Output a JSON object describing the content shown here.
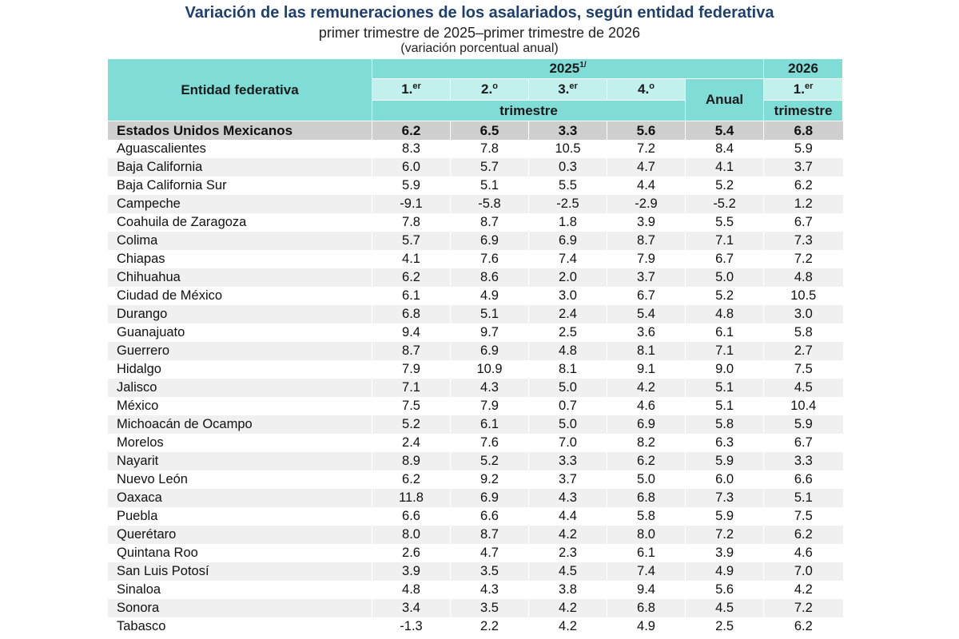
{
  "title": "Variación de las remuneraciones de los asalariados, según entidad federativa",
  "subtitle": "primer trimestre de 2025–primer trimestre de 2026",
  "subtitle2": "(variación porcentual anual)",
  "header": {
    "entity_label": "Entidad federativa",
    "year1": "2025",
    "year1_note": "1/",
    "year2": "2026",
    "q1": "1.",
    "q1_sup": "er",
    "q2": "2.",
    "q2_sup": "o",
    "q3": "3.",
    "q3_sup": "er",
    "q4": "4.",
    "q4_sup": "o",
    "anual": "Anual",
    "q2026": "1.",
    "q2026_sup": "er",
    "trimestre": "trimestre",
    "trimestre2": "trimestre"
  },
  "national": {
    "name": "Estados Unidos Mexicanos",
    "values": [
      "6.2",
      "6.5",
      "3.3",
      "5.6",
      "5.4",
      "6.8"
    ]
  },
  "rows": [
    {
      "name": "Aguascalientes",
      "values": [
        "8.3",
        "7.8",
        "10.5",
        "7.2",
        "8.4",
        "5.9"
      ]
    },
    {
      "name": "Baja California",
      "values": [
        "6.0",
        "5.7",
        "0.3",
        "4.7",
        "4.1",
        "3.7"
      ]
    },
    {
      "name": "Baja California Sur",
      "values": [
        "5.9",
        "5.1",
        "5.5",
        "4.4",
        "5.2",
        "6.2"
      ]
    },
    {
      "name": "Campeche",
      "values": [
        "-9.1",
        "-5.8",
        "-2.5",
        "-2.9",
        "-5.2",
        "1.2"
      ]
    },
    {
      "name": "Coahuila de Zaragoza",
      "values": [
        "7.8",
        "8.7",
        "1.8",
        "3.9",
        "5.5",
        "6.7"
      ]
    },
    {
      "name": "Colima",
      "values": [
        "5.7",
        "6.9",
        "6.9",
        "8.7",
        "7.1",
        "7.3"
      ]
    },
    {
      "name": "Chiapas",
      "values": [
        "4.1",
        "7.6",
        "7.4",
        "7.9",
        "6.7",
        "7.2"
      ]
    },
    {
      "name": "Chihuahua",
      "values": [
        "6.2",
        "8.6",
        "2.0",
        "3.7",
        "5.0",
        "4.8"
      ]
    },
    {
      "name": "Ciudad de México",
      "values": [
        "6.1",
        "4.9",
        "3.0",
        "6.7",
        "5.2",
        "10.5"
      ]
    },
    {
      "name": "Durango",
      "values": [
        "6.8",
        "5.1",
        "2.4",
        "5.4",
        "4.8",
        "3.0"
      ]
    },
    {
      "name": "Guanajuato",
      "values": [
        "9.4",
        "9.7",
        "2.5",
        "3.6",
        "6.1",
        "5.8"
      ]
    },
    {
      "name": "Guerrero",
      "values": [
        "8.7",
        "6.9",
        "4.8",
        "8.1",
        "7.1",
        "2.7"
      ]
    },
    {
      "name": "Hidalgo",
      "values": [
        "7.9",
        "10.9",
        "8.1",
        "9.1",
        "9.0",
        "7.5"
      ]
    },
    {
      "name": "Jalisco",
      "values": [
        "7.1",
        "4.3",
        "5.0",
        "4.2",
        "5.1",
        "4.5"
      ]
    },
    {
      "name": "México",
      "values": [
        "7.5",
        "7.9",
        "0.7",
        "4.6",
        "5.1",
        "10.4"
      ]
    },
    {
      "name": "Michoacán de Ocampo",
      "values": [
        "5.2",
        "6.1",
        "5.0",
        "6.9",
        "5.8",
        "5.9"
      ]
    },
    {
      "name": "Morelos",
      "values": [
        "2.4",
        "7.6",
        "7.0",
        "8.2",
        "6.3",
        "6.7"
      ]
    },
    {
      "name": "Nayarit",
      "values": [
        "8.9",
        "5.2",
        "3.3",
        "6.2",
        "5.9",
        "3.3"
      ]
    },
    {
      "name": "Nuevo León",
      "values": [
        "6.2",
        "9.2",
        "3.7",
        "5.0",
        "6.0",
        "6.6"
      ]
    },
    {
      "name": "Oaxaca",
      "values": [
        "11.8",
        "6.9",
        "4.3",
        "6.8",
        "7.3",
        "5.1"
      ]
    },
    {
      "name": "Puebla",
      "values": [
        "6.6",
        "6.6",
        "4.4",
        "5.8",
        "5.9",
        "7.5"
      ]
    },
    {
      "name": "Querétaro",
      "values": [
        "8.0",
        "8.7",
        "4.2",
        "8.0",
        "7.2",
        "6.2"
      ]
    },
    {
      "name": "Quintana Roo",
      "values": [
        "2.6",
        "4.7",
        "2.3",
        "6.1",
        "3.9",
        "4.6"
      ]
    },
    {
      "name": "San Luis Potosí",
      "values": [
        "3.9",
        "3.5",
        "4.5",
        "7.4",
        "4.9",
        "7.0"
      ]
    },
    {
      "name": "Sinaloa",
      "values": [
        "4.8",
        "4.3",
        "3.8",
        "9.4",
        "5.6",
        "4.2"
      ]
    },
    {
      "name": "Sonora",
      "values": [
        "3.4",
        "3.5",
        "4.2",
        "6.8",
        "4.5",
        "7.2"
      ]
    },
    {
      "name": "Tabasco",
      "values": [
        "-1.3",
        "2.2",
        "4.2",
        "4.9",
        "2.5",
        "6.2"
      ]
    }
  ]
}
